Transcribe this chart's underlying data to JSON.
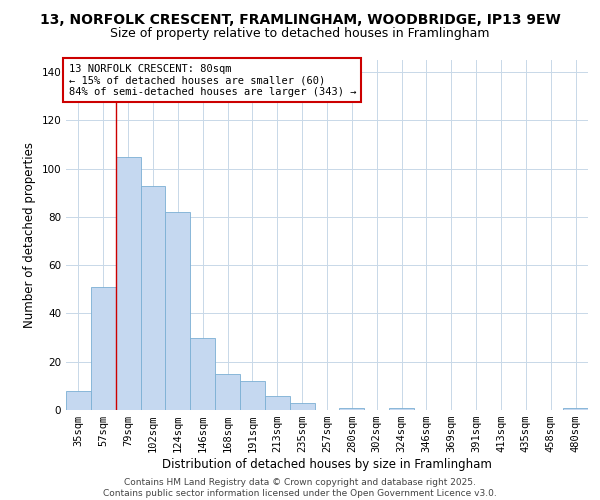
{
  "title": "13, NORFOLK CRESCENT, FRAMLINGHAM, WOODBRIDGE, IP13 9EW",
  "subtitle": "Size of property relative to detached houses in Framlingham",
  "xlabel": "Distribution of detached houses by size in Framlingham",
  "ylabel": "Number of detached properties",
  "categories": [
    "35sqm",
    "57sqm",
    "79sqm",
    "102sqm",
    "124sqm",
    "146sqm",
    "168sqm",
    "191sqm",
    "213sqm",
    "235sqm",
    "257sqm",
    "280sqm",
    "302sqm",
    "324sqm",
    "346sqm",
    "369sqm",
    "391sqm",
    "413sqm",
    "435sqm",
    "458sqm",
    "480sqm"
  ],
  "values": [
    8,
    51,
    105,
    93,
    82,
    30,
    15,
    12,
    6,
    3,
    0,
    1,
    0,
    1,
    0,
    0,
    0,
    0,
    0,
    0,
    1
  ],
  "bar_color": "#c5d8f0",
  "bar_edge_color": "#7bafd4",
  "property_line_index": 2,
  "property_line_color": "#cc0000",
  "ylim": [
    0,
    145
  ],
  "yticks": [
    0,
    20,
    40,
    60,
    80,
    100,
    120,
    140
  ],
  "annotation_title": "13 NORFOLK CRESCENT: 80sqm",
  "annotation_line1": "← 15% of detached houses are smaller (60)",
  "annotation_line2": "84% of semi-detached houses are larger (343) →",
  "footer1": "Contains HM Land Registry data © Crown copyright and database right 2025.",
  "footer2": "Contains public sector information licensed under the Open Government Licence v3.0.",
  "background_color": "#ffffff",
  "title_fontsize": 10,
  "subtitle_fontsize": 9,
  "axis_label_fontsize": 8.5,
  "tick_fontsize": 7.5,
  "annotation_fontsize": 7.5,
  "footer_fontsize": 6.5
}
